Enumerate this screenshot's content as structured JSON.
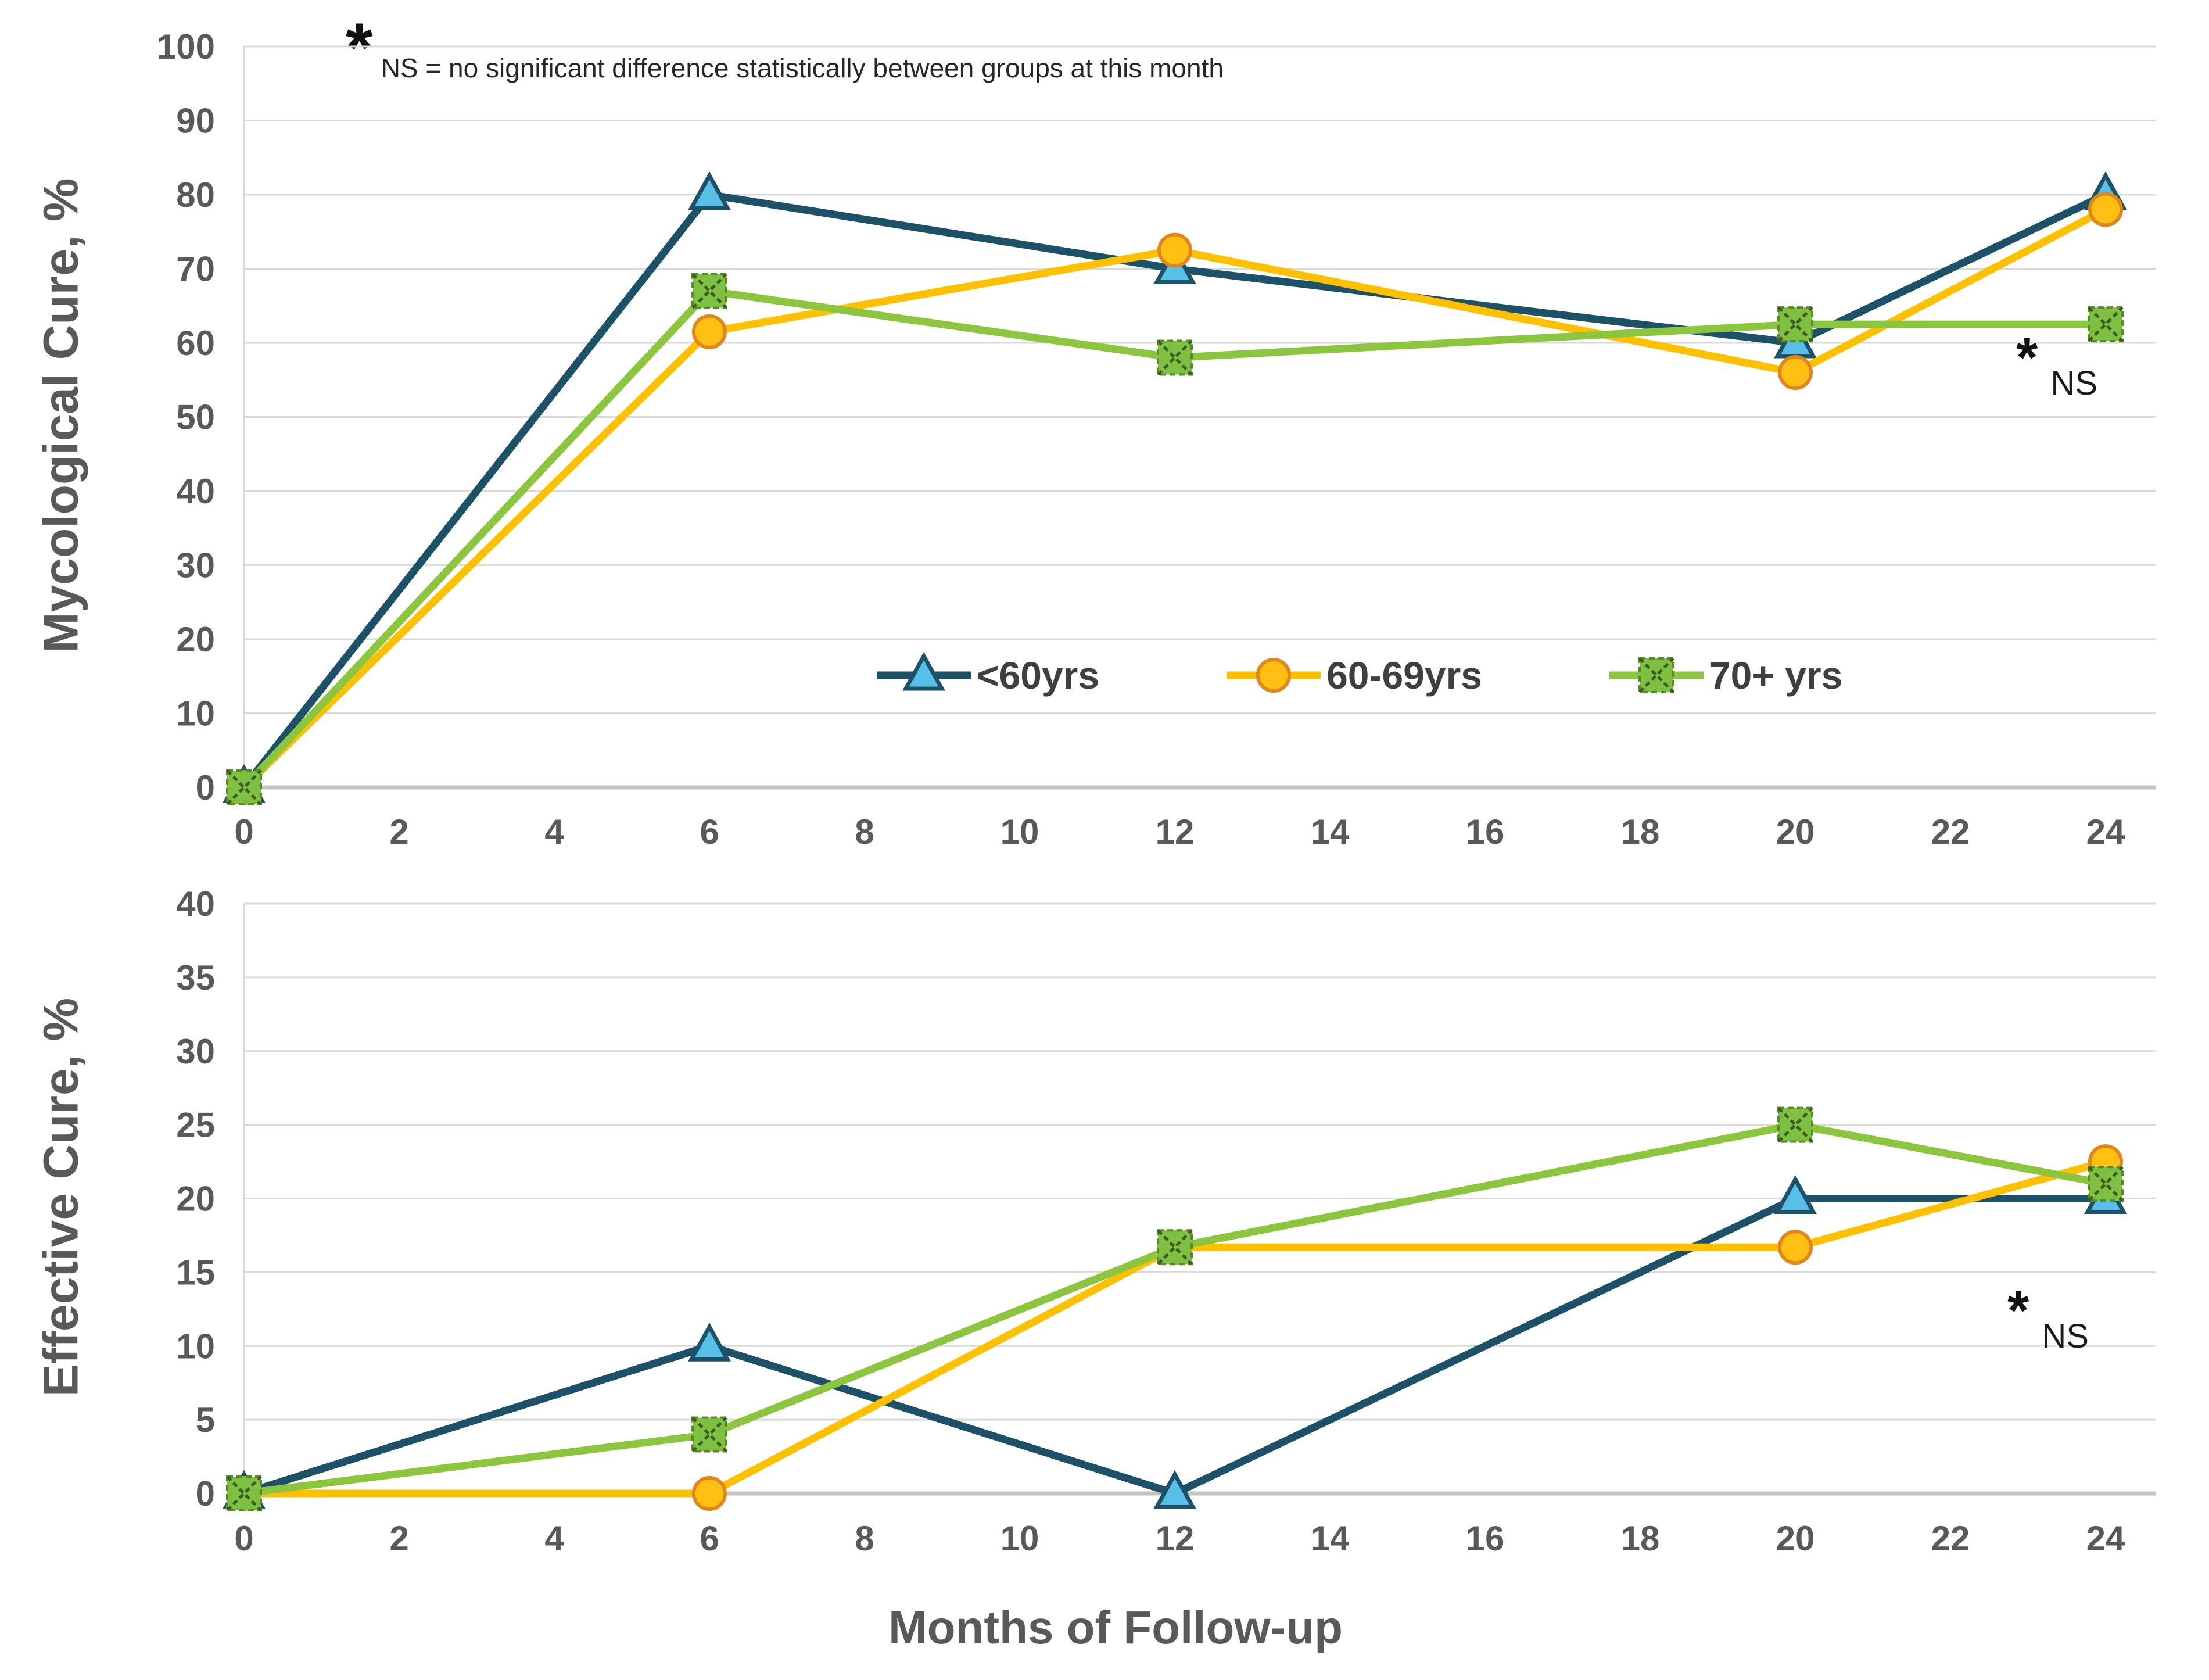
{
  "figure": {
    "footnote": {
      "star": "*",
      "text": "NS = no significant difference statistically between groups at this month"
    },
    "x_axis_title": "Months of Follow-up",
    "legend": {
      "position": "inside top chart, lower center",
      "items": [
        {
          "label": "<60yrs"
        },
        {
          "label": "60-69yrs"
        },
        {
          "label": "70+ yrs"
        }
      ]
    }
  },
  "style": {
    "series": [
      {
        "name": "<60yrs",
        "line": "#1c5168",
        "marker": "triangle",
        "fill": "#58bfe9",
        "stroke": "#1c5168"
      },
      {
        "name": "60-69yrs",
        "line": "#ffc000",
        "marker": "circle",
        "fill": "#ffc013",
        "stroke": "#e0861a"
      },
      {
        "name": "70+ yrs",
        "line": "#8cc63f",
        "marker": "x-square",
        "fill": "#7ec142",
        "stroke": "#3c5c20",
        "border": "#5a8a28"
      }
    ],
    "gridline": "#d9d9d9",
    "axis_line": "#c3c3c3",
    "tick_text": "#595959",
    "title_text": "#595959",
    "legend_text": "#3f3f3f",
    "note_text": "#262626"
  },
  "chart_data": [
    {
      "type": "line",
      "title": "",
      "ylabel": "Mycological Cure, %",
      "xlabel": "",
      "x": [
        0,
        6,
        12,
        20,
        24
      ],
      "series": [
        {
          "name": "<60yrs",
          "values": [
            0,
            80,
            70,
            60,
            80
          ]
        },
        {
          "name": "60-69yrs",
          "values": [
            0,
            61.5,
            72.5,
            56,
            78
          ]
        },
        {
          "name": "70+ yrs",
          "values": [
            0,
            67,
            58,
            62.5,
            62.5
          ]
        }
      ],
      "ylim": [
        0,
        100
      ],
      "yticks": [
        0,
        10,
        20,
        30,
        40,
        50,
        60,
        70,
        80,
        90,
        100
      ],
      "xlim": [
        0,
        24.6
      ],
      "xticks": [
        0,
        2,
        4,
        6,
        8,
        10,
        12,
        14,
        16,
        18,
        20,
        22,
        24
      ],
      "grid": "horizontal only",
      "ns_note": {
        "star": "*",
        "label": "NS",
        "near_month": 24
      }
    },
    {
      "type": "line",
      "title": "",
      "ylabel": "Effective Cure, %",
      "xlabel": "Months of Follow-up",
      "x": [
        0,
        6,
        12,
        20,
        24
      ],
      "series": [
        {
          "name": "<60yrs",
          "values": [
            0,
            10,
            0,
            20,
            20
          ]
        },
        {
          "name": "60-69yrs",
          "values": [
            0,
            0,
            16.7,
            16.7,
            22.5
          ]
        },
        {
          "name": "70+ yrs",
          "values": [
            0,
            4,
            16.7,
            25,
            21
          ]
        }
      ],
      "ylim": [
        0,
        40
      ],
      "yticks": [
        0,
        5,
        10,
        15,
        20,
        25,
        30,
        35,
        40
      ],
      "xlim": [
        0,
        24.6
      ],
      "xticks": [
        0,
        2,
        4,
        6,
        8,
        10,
        12,
        14,
        16,
        18,
        20,
        22,
        24
      ],
      "grid": "horizontal only",
      "ns_note": {
        "star": "*",
        "label": "NS",
        "near_month": 24
      }
    }
  ]
}
